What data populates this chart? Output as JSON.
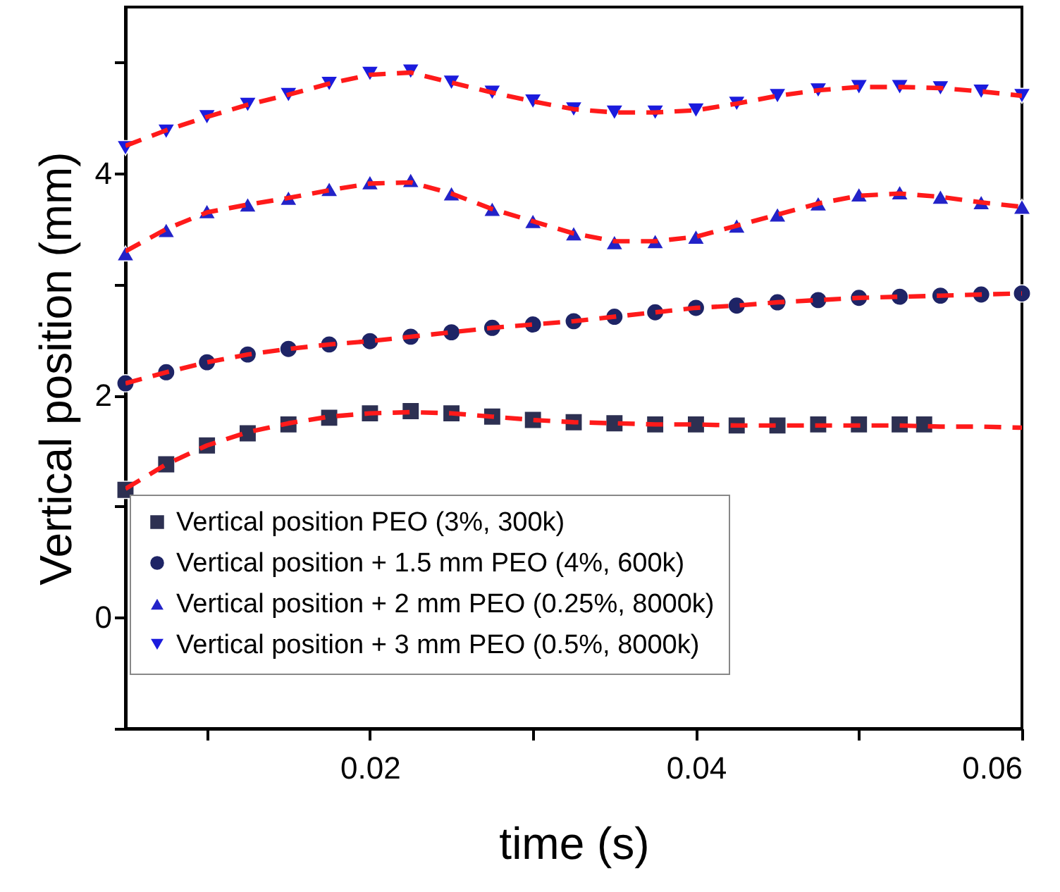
{
  "chart_data": {
    "type": "scatter",
    "xlabel": "time (s)",
    "ylabel": "Vertical position (mm)",
    "xlim": [
      0.005,
      0.06
    ],
    "ylim": [
      -1,
      5.5
    ],
    "xticks": [
      {
        "value": 0.01,
        "label": null
      },
      0.02,
      {
        "value": 0.03,
        "label": null
      },
      0.04,
      {
        "value": 0.05,
        "label": null
      },
      0.06
    ],
    "yticks": [
      {
        "value": -1,
        "label": null
      },
      0,
      {
        "value": 1,
        "label": null
      },
      2,
      {
        "value": 3,
        "label": null
      },
      4,
      {
        "value": 5,
        "label": null
      }
    ],
    "legend": "bottom",
    "grid": false,
    "series": [
      {
        "name": "Vertical position PEO (3%, 300k)",
        "type": "scatter",
        "marker": "square",
        "color": "#2d3052",
        "x": [
          0.005,
          0.0075,
          0.01,
          0.0125,
          0.015,
          0.0175,
          0.02,
          0.0225,
          0.025,
          0.0275,
          0.03,
          0.0325,
          0.035,
          0.0375,
          0.04,
          0.0425,
          0.045,
          0.0475,
          0.05,
          0.0525,
          0.054
        ],
        "values": [
          1.15,
          1.38,
          1.55,
          1.66,
          1.74,
          1.8,
          1.84,
          1.86,
          1.84,
          1.81,
          1.78,
          1.76,
          1.75,
          1.74,
          1.74,
          1.73,
          1.73,
          1.74,
          1.74,
          1.74,
          1.74
        ]
      },
      {
        "name": "Vertical position + 1.5 mm PEO (4%, 600k)",
        "type": "scatter",
        "marker": "circle",
        "color": "#1e2466",
        "x": [
          0.005,
          0.0075,
          0.01,
          0.0125,
          0.015,
          0.0175,
          0.02,
          0.0225,
          0.025,
          0.0275,
          0.03,
          0.0325,
          0.035,
          0.0375,
          0.04,
          0.0425,
          0.045,
          0.0475,
          0.05,
          0.0525,
          0.055,
          0.0575,
          0.06
        ],
        "values": [
          2.11,
          2.21,
          2.3,
          2.37,
          2.42,
          2.46,
          2.49,
          2.53,
          2.57,
          2.61,
          2.64,
          2.67,
          2.71,
          2.75,
          2.79,
          2.81,
          2.84,
          2.86,
          2.88,
          2.89,
          2.9,
          2.91,
          2.92
        ]
      },
      {
        "name": "Vertical position + 2 mm PEO (0.25%, 8000k)",
        "type": "scatter",
        "marker": "triangle",
        "color": "#2323c8",
        "x": [
          0.005,
          0.0075,
          0.01,
          0.0125,
          0.015,
          0.0175,
          0.02,
          0.0225,
          0.025,
          0.0275,
          0.03,
          0.0325,
          0.035,
          0.0375,
          0.04,
          0.0425,
          0.045,
          0.0475,
          0.05,
          0.0525,
          0.055,
          0.0575,
          0.06
        ],
        "values": [
          3.28,
          3.49,
          3.66,
          3.72,
          3.78,
          3.86,
          3.92,
          3.94,
          3.82,
          3.68,
          3.57,
          3.46,
          3.38,
          3.39,
          3.43,
          3.53,
          3.63,
          3.73,
          3.81,
          3.83,
          3.79,
          3.74,
          3.7
        ]
      },
      {
        "name": "Vertical position + 3 mm PEO (0.5%, 8000k)",
        "type": "scatter",
        "marker": "triangle-down",
        "color": "#1b1bdd",
        "x": [
          0.005,
          0.0075,
          0.01,
          0.0125,
          0.015,
          0.0175,
          0.02,
          0.0225,
          0.025,
          0.0275,
          0.03,
          0.0325,
          0.035,
          0.0375,
          0.04,
          0.0425,
          0.045,
          0.0475,
          0.05,
          0.0525,
          0.055,
          0.0575,
          0.06
        ],
        "values": [
          4.23,
          4.38,
          4.51,
          4.62,
          4.71,
          4.81,
          4.9,
          4.92,
          4.82,
          4.73,
          4.65,
          4.58,
          4.55,
          4.55,
          4.57,
          4.63,
          4.7,
          4.75,
          4.78,
          4.78,
          4.77,
          4.74,
          4.7
        ]
      },
      {
        "type": "line",
        "line_style": "dashed",
        "color": "#ff1a1a",
        "x": [
          0.005,
          0.0075,
          0.01,
          0.0125,
          0.015,
          0.0175,
          0.02,
          0.0225,
          0.025,
          0.0275,
          0.03,
          0.0325,
          0.035,
          0.0375,
          0.04,
          0.0425,
          0.045,
          0.0475,
          0.05,
          0.0525,
          0.055,
          0.0575,
          0.06
        ],
        "values": [
          1.16,
          1.38,
          1.55,
          1.67,
          1.75,
          1.81,
          1.84,
          1.85,
          1.84,
          1.81,
          1.78,
          1.76,
          1.75,
          1.74,
          1.74,
          1.73,
          1.73,
          1.73,
          1.73,
          1.73,
          1.72,
          1.72,
          1.71
        ]
      },
      {
        "type": "line",
        "line_style": "dashed",
        "color": "#ff1a1a",
        "x": [
          0.005,
          0.0075,
          0.01,
          0.0125,
          0.015,
          0.0175,
          0.02,
          0.0225,
          0.025,
          0.0275,
          0.03,
          0.0325,
          0.035,
          0.0375,
          0.04,
          0.0425,
          0.045,
          0.0475,
          0.05,
          0.0525,
          0.055,
          0.0575,
          0.06
        ],
        "values": [
          2.11,
          2.21,
          2.3,
          2.37,
          2.42,
          2.46,
          2.49,
          2.53,
          2.57,
          2.61,
          2.64,
          2.67,
          2.71,
          2.75,
          2.79,
          2.81,
          2.84,
          2.86,
          2.88,
          2.89,
          2.9,
          2.91,
          2.92
        ]
      },
      {
        "type": "line",
        "line_style": "dashed",
        "color": "#ff1a1a",
        "x": [
          0.005,
          0.0075,
          0.01,
          0.0125,
          0.015,
          0.0175,
          0.02,
          0.0225,
          0.025,
          0.0275,
          0.03,
          0.0325,
          0.035,
          0.0375,
          0.04,
          0.0425,
          0.045,
          0.0475,
          0.05,
          0.0525,
          0.055,
          0.0575,
          0.06
        ],
        "values": [
          3.3,
          3.5,
          3.65,
          3.72,
          3.78,
          3.85,
          3.91,
          3.92,
          3.82,
          3.68,
          3.57,
          3.46,
          3.39,
          3.39,
          3.43,
          3.53,
          3.63,
          3.73,
          3.8,
          3.82,
          3.79,
          3.74,
          3.7
        ]
      },
      {
        "type": "line",
        "line_style": "dashed",
        "color": "#ff1a1a",
        "x": [
          0.005,
          0.0075,
          0.01,
          0.0125,
          0.015,
          0.0175,
          0.02,
          0.0225,
          0.025,
          0.0275,
          0.03,
          0.0325,
          0.035,
          0.0375,
          0.04,
          0.0425,
          0.045,
          0.0475,
          0.05,
          0.0525,
          0.055,
          0.0575,
          0.06
        ],
        "values": [
          4.25,
          4.39,
          4.51,
          4.62,
          4.71,
          4.81,
          4.89,
          4.91,
          4.82,
          4.73,
          4.65,
          4.58,
          4.55,
          4.55,
          4.57,
          4.63,
          4.7,
          4.75,
          4.78,
          4.78,
          4.77,
          4.74,
          4.7
        ]
      }
    ]
  }
}
